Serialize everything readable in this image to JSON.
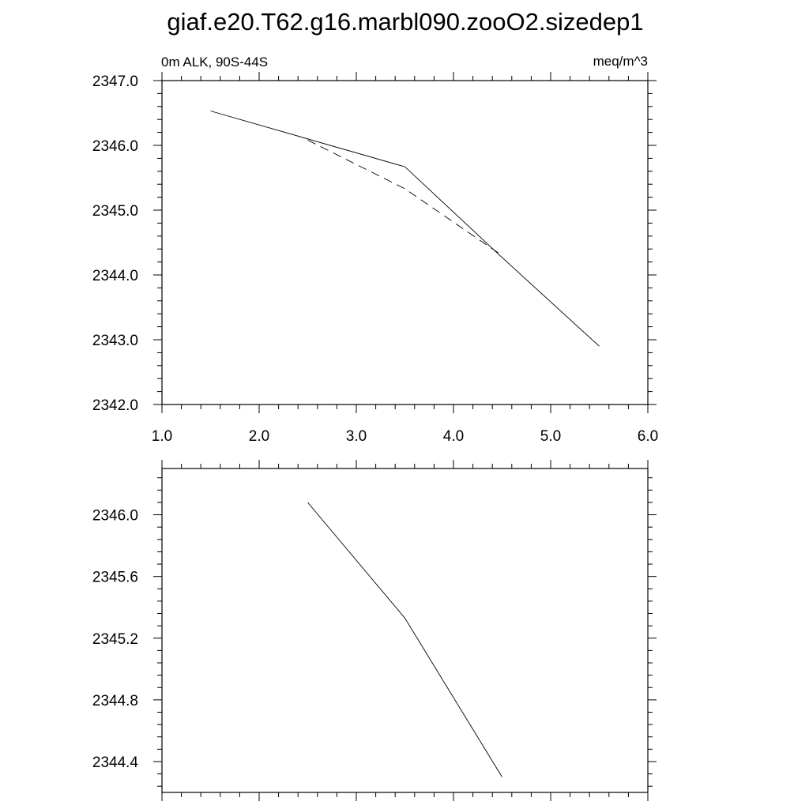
{
  "figure": {
    "title": "giaf.e20.T62.g16.marbl090.zooO2.sizedep1",
    "subtitle_left": "0m ALK, 90S-44S",
    "subtitle_right": "meq/m^3"
  },
  "chart_data": [
    {
      "type": "line",
      "xlim": [
        1.0,
        6.0
      ],
      "ylim": [
        2342.0,
        2347.0
      ],
      "x_ticks": [
        "1.0",
        "2.0",
        "3.0",
        "4.0",
        "5.0",
        "6.0"
      ],
      "y_ticks": [
        "2342.0",
        "2343.0",
        "2344.0",
        "2345.0",
        "2346.0",
        "2347.0"
      ],
      "x_minor_step": 0.2,
      "y_minor_step": 0.2,
      "series": [
        {
          "style": "solid",
          "x": [
            1.5,
            3.5,
            4.5,
            5.5
          ],
          "y": [
            2346.53,
            2345.67,
            2344.27,
            2342.9
          ]
        },
        {
          "style": "dashed",
          "x": [
            2.5,
            3.5,
            4.5
          ],
          "y": [
            2346.08,
            2345.33,
            2344.3
          ]
        }
      ]
    },
    {
      "type": "line",
      "xlim": [
        1.0,
        6.0
      ],
      "ylim": [
        2344.2,
        2346.3
      ],
      "x_ticks": [],
      "y_ticks": [
        "2344.4",
        "2344.8",
        "2345.2",
        "2345.6",
        "2346.0"
      ],
      "y_tick_values": [
        2344.4,
        2344.8,
        2345.2,
        2345.6,
        2346.0
      ],
      "x_minor_step": 0.2,
      "y_minor_step": 0.08,
      "series": [
        {
          "style": "solid",
          "x": [
            2.5,
            3.5,
            4.5
          ],
          "y": [
            2346.08,
            2345.33,
            2344.3
          ]
        }
      ]
    }
  ]
}
